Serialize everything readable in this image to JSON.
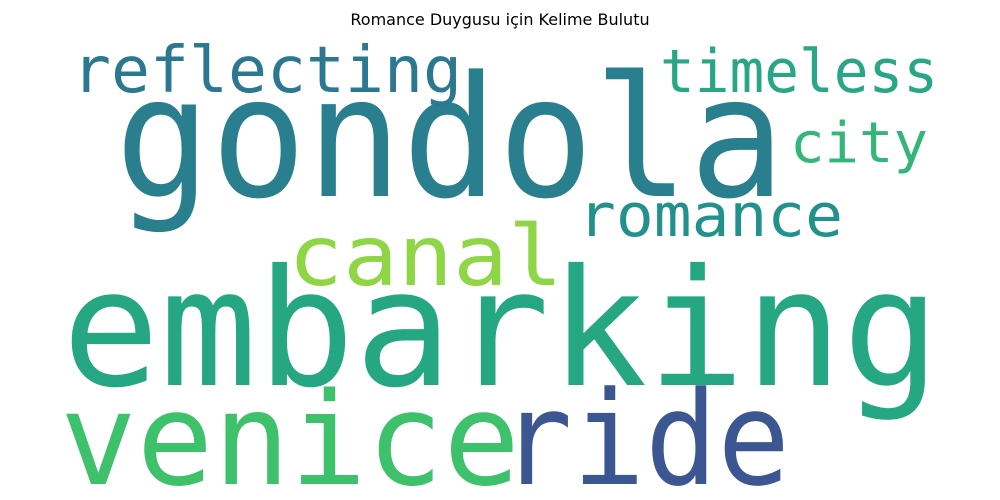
{
  "title": "Romance Duygusu için Kelime Bulutu",
  "words": [
    {
      "text": "gondola",
      "color": "#2a7f8e"
    },
    {
      "text": "embarking",
      "color": "#26a784"
    },
    {
      "text": "venice",
      "color": "#3ec16b"
    },
    {
      "text": "ride",
      "color": "#3b5691"
    },
    {
      "text": "canal",
      "color": "#8ed645"
    },
    {
      "text": "romance",
      "color": "#22918b"
    },
    {
      "text": "reflecting",
      "color": "#2c7890"
    },
    {
      "text": "timeless",
      "color": "#29a686"
    },
    {
      "text": "city",
      "color": "#34b679"
    }
  ]
}
